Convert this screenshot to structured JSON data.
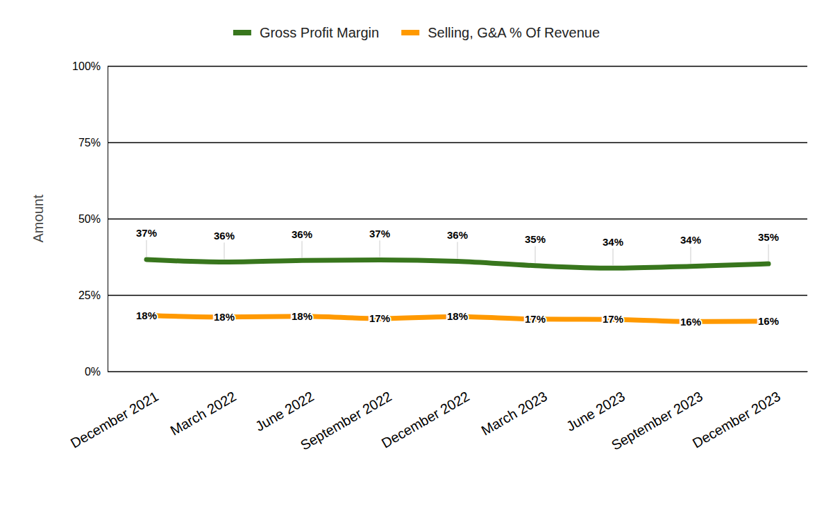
{
  "chart_data": {
    "type": "line",
    "y_label": "Amount",
    "categories": [
      "December 2021",
      "March 2022",
      "June 2022",
      "September 2022",
      "December 2022",
      "March 2023",
      "June 2023",
      "September 2023",
      "December 2023"
    ],
    "series": [
      {
        "name": "Gross Profit Margin",
        "color": "#38761d",
        "values": [
          36.6,
          35.8,
          36.3,
          36.5,
          36.0,
          34.6,
          33.8,
          34.4,
          35.2
        ],
        "value_labels": [
          "37%",
          "36%",
          "36%",
          "37%",
          "36%",
          "35%",
          "34%",
          "34%",
          "35%"
        ]
      },
      {
        "name": "Selling, G&A % Of Revenue",
        "color": "#ff9900",
        "values": [
          18.3,
          17.8,
          18.0,
          17.3,
          17.9,
          17.1,
          17.0,
          16.3,
          16.4
        ],
        "value_labels": [
          "18%",
          "18%",
          "18%",
          "17%",
          "18%",
          "17%",
          "17%",
          "16%",
          "16%"
        ]
      }
    ],
    "ylim": [
      0,
      100
    ],
    "yticks": [
      {
        "value": 0,
        "label": "0%"
      },
      {
        "value": 25,
        "label": "25%"
      },
      {
        "value": 50,
        "label": "50%"
      },
      {
        "value": 75,
        "label": "75%"
      },
      {
        "value": 100,
        "label": "100%"
      }
    ],
    "grid": true,
    "legend": "top",
    "data_labels": true
  }
}
